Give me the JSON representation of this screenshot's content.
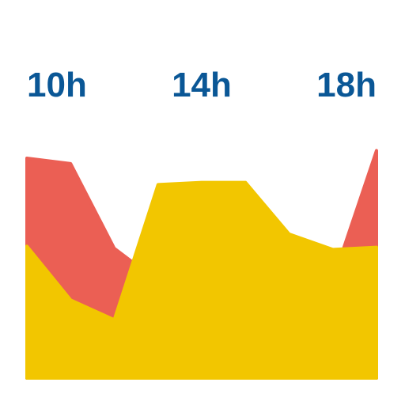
{
  "chart_data": {
    "type": "area",
    "x": [
      10,
      11,
      12,
      13,
      14,
      15,
      16,
      17,
      18
    ],
    "x_tick_labels": [
      {
        "x": 10,
        "label": "10h"
      },
      {
        "x": 14,
        "label": "14h"
      },
      {
        "x": 18,
        "label": "18h"
      }
    ],
    "ylim": [
      0,
      100
    ],
    "stacked": false,
    "series": [
      {
        "color": "#eb5f54",
        "values": [
          100,
          97.5,
          59,
          44,
          77,
          77,
          59.5,
          44.5,
          103.5
        ]
      },
      {
        "color": "#f2c600",
        "values": [
          60,
          35.5,
          26.5,
          88,
          89,
          89,
          65.5,
          58.5,
          59.5
        ]
      }
    ],
    "tick_color": "#0a5796",
    "grid": false,
    "legend": "none"
  }
}
